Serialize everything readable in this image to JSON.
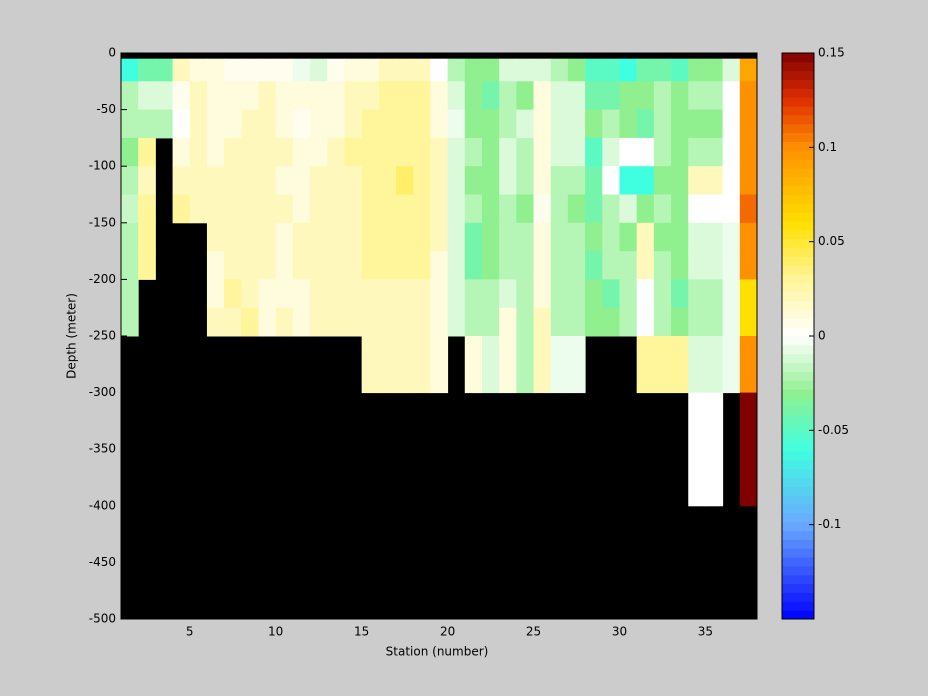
{
  "chart_data": {
    "type": "heatmap",
    "xlabel": "Station (number)",
    "ylabel": "Depth (meter)",
    "xlim": [
      1,
      38
    ],
    "ylim": [
      -500,
      0
    ],
    "xticks": [
      5,
      10,
      15,
      20,
      25,
      30,
      35
    ],
    "yticks": [
      0,
      -50,
      -100,
      -150,
      -200,
      -250,
      -300,
      -350,
      -400,
      -450,
      -500
    ],
    "background": "#000000",
    "station_edges": [
      1,
      2,
      3,
      4,
      5,
      6,
      7,
      8,
      9,
      10,
      11,
      12,
      13,
      14,
      15,
      16,
      17,
      18,
      19,
      20,
      21,
      22,
      23,
      24,
      25,
      26,
      27,
      28,
      29,
      30,
      31,
      32,
      33,
      34,
      35,
      36,
      37,
      38
    ],
    "depth_edges": [
      -5,
      -25,
      -50,
      -75,
      -100,
      -125,
      -150,
      -175,
      -200,
      -225,
      -250,
      -300,
      -400
    ],
    "clim": [
      -0.15,
      0.15
    ],
    "cticks": [
      -0.1,
      -0.05,
      0,
      0.05,
      0.1,
      0.15
    ],
    "cmap_stops": [
      [
        -0.15,
        "#0000ff"
      ],
      [
        -0.1,
        "#6aa8ff"
      ],
      [
        -0.06,
        "#40ffe0"
      ],
      [
        -0.03,
        "#90f090"
      ],
      [
        0,
        "#ffffff"
      ],
      [
        0.03,
        "#fff59a"
      ],
      [
        0.06,
        "#ffe000"
      ],
      [
        0.1,
        "#ff9000"
      ],
      [
        0.125,
        "#e03000"
      ],
      [
        0.15,
        "#800000"
      ]
    ],
    "z": [
      [
        -0.06,
        -0.02,
        -0.02,
        -0.03,
        -0.02,
        -0.015,
        -0.02,
        -0.02,
        -0.02,
        -0.02,
        null,
        null
      ],
      [
        -0.04,
        -0.01,
        -0.02,
        0.03,
        0.02,
        0.03,
        0.03,
        0.03,
        null,
        null,
        null,
        null
      ],
      [
        -0.04,
        -0.01,
        -0.02,
        null,
        null,
        null,
        null,
        null,
        null,
        null,
        null,
        null
      ],
      [
        0.02,
        0.005,
        0.0,
        0.01,
        0.02,
        0.03,
        null,
        null,
        null,
        null,
        null,
        null
      ],
      [
        0.01,
        0.02,
        0.02,
        0.02,
        0.02,
        0.02,
        null,
        null,
        null,
        null,
        null,
        null
      ],
      [
        0.01,
        0.01,
        0.01,
        0.01,
        0.02,
        0.02,
        0.02,
        0.01,
        0.01,
        0.02,
        null,
        null
      ],
      [
        0.005,
        0.01,
        0.01,
        0.02,
        0.02,
        0.02,
        0.02,
        0.02,
        0.03,
        0.02,
        null,
        null
      ],
      [
        0.005,
        0.01,
        0.02,
        0.02,
        0.02,
        0.02,
        0.02,
        0.02,
        0.02,
        0.03,
        null,
        null
      ],
      [
        0.005,
        0.02,
        0.02,
        0.02,
        0.02,
        0.02,
        0.02,
        0.02,
        0.01,
        0.01,
        null,
        null
      ],
      [
        0.005,
        0.01,
        0.01,
        0.02,
        0.01,
        0.02,
        0.01,
        0.01,
        0.01,
        0.02,
        null,
        null
      ],
      [
        -0.005,
        0.01,
        0.005,
        0.01,
        0.01,
        0.01,
        0.02,
        0.02,
        0.01,
        0.01,
        null,
        null
      ],
      [
        -0.01,
        0.01,
        0.01,
        0.01,
        0.02,
        0.02,
        0.02,
        0.02,
        0.02,
        0.02,
        null,
        null
      ],
      [
        0.005,
        0.01,
        0.01,
        0.02,
        0.02,
        0.02,
        0.02,
        0.02,
        0.02,
        0.02,
        null,
        null
      ],
      [
        0.01,
        0.02,
        0.02,
        0.03,
        0.02,
        0.02,
        0.02,
        0.02,
        0.02,
        0.02,
        null,
        null
      ],
      [
        0.01,
        0.02,
        0.03,
        0.03,
        0.03,
        0.03,
        0.03,
        0.03,
        0.02,
        0.02,
        0.02,
        null
      ],
      [
        0.02,
        0.03,
        0.03,
        0.03,
        0.03,
        0.03,
        0.03,
        0.03,
        0.02,
        0.02,
        0.02,
        null
      ],
      [
        0.02,
        0.03,
        0.03,
        0.03,
        0.04,
        0.03,
        0.03,
        0.03,
        0.02,
        0.02,
        0.02,
        null
      ],
      [
        0.02,
        0.03,
        0.03,
        0.03,
        0.03,
        0.03,
        0.03,
        0.03,
        0.02,
        0.02,
        0.02,
        null
      ],
      [
        0.0,
        0.01,
        0.01,
        0.02,
        0.02,
        0.02,
        0.02,
        0.01,
        0.01,
        0.01,
        0.01,
        null
      ],
      [
        -0.02,
        -0.01,
        -0.005,
        -0.01,
        -0.01,
        -0.01,
        -0.01,
        -0.01,
        -0.01,
        -0.01,
        null,
        null
      ],
      [
        -0.03,
        -0.03,
        -0.03,
        -0.02,
        -0.03,
        -0.02,
        -0.04,
        -0.04,
        -0.02,
        -0.02,
        0.01,
        null
      ],
      [
        -0.03,
        -0.04,
        -0.03,
        -0.03,
        -0.03,
        -0.03,
        -0.03,
        -0.03,
        -0.02,
        -0.02,
        -0.01,
        null
      ],
      [
        -0.01,
        -0.02,
        -0.02,
        -0.01,
        -0.01,
        -0.02,
        -0.02,
        -0.02,
        -0.01,
        0.01,
        0.01,
        null
      ],
      [
        -0.01,
        -0.03,
        -0.01,
        -0.02,
        -0.02,
        -0.03,
        -0.02,
        -0.02,
        -0.02,
        -0.02,
        -0.02,
        null
      ],
      [
        -0.01,
        0.01,
        0.01,
        0.01,
        0.01,
        0.005,
        0.01,
        0.01,
        0.01,
        0.02,
        0.02,
        null
      ],
      [
        -0.02,
        -0.01,
        -0.01,
        -0.01,
        -0.02,
        -0.02,
        -0.02,
        -0.02,
        -0.02,
        -0.02,
        -0.005,
        null
      ],
      [
        -0.03,
        -0.01,
        -0.01,
        -0.01,
        -0.02,
        -0.03,
        -0.02,
        -0.02,
        -0.02,
        -0.02,
        -0.005,
        null
      ],
      [
        -0.05,
        -0.04,
        -0.03,
        -0.05,
        -0.04,
        -0.04,
        -0.03,
        -0.04,
        -0.03,
        -0.03,
        null,
        null
      ],
      [
        -0.05,
        -0.04,
        -0.02,
        -0.01,
        0.0,
        -0.02,
        -0.02,
        -0.02,
        -0.04,
        -0.03,
        null,
        null
      ],
      [
        -0.06,
        -0.03,
        -0.03,
        0.0,
        -0.06,
        -0.01,
        -0.03,
        -0.02,
        -0.02,
        -0.02,
        null,
        null
      ],
      [
        -0.04,
        -0.03,
        -0.04,
        0.0,
        -0.06,
        -0.03,
        0.02,
        0.02,
        0.0,
        0.0,
        0.03,
        null
      ],
      [
        -0.04,
        -0.02,
        -0.02,
        -0.02,
        -0.03,
        -0.02,
        -0.03,
        -0.02,
        -0.02,
        -0.02,
        0.03,
        null
      ],
      [
        -0.05,
        -0.03,
        -0.03,
        -0.03,
        -0.03,
        -0.03,
        -0.03,
        -0.03,
        -0.04,
        -0.03,
        0.03,
        null
      ],
      [
        -0.03,
        -0.02,
        -0.03,
        -0.02,
        0.02,
        0.0,
        -0.01,
        -0.01,
        -0.02,
        -0.02,
        -0.01,
        0.0
      ],
      [
        -0.03,
        -0.02,
        -0.03,
        -0.02,
        0.02,
        0.0,
        -0.01,
        -0.01,
        -0.02,
        -0.02,
        -0.01,
        0.0
      ],
      [
        -0.01,
        0.0,
        0.0,
        0.0,
        0.0,
        0.0,
        -0.005,
        -0.005,
        -0.005,
        -0.005,
        -0.005,
        null
      ],
      [
        0.09,
        0.1,
        0.1,
        0.1,
        0.1,
        0.11,
        0.1,
        0.1,
        0.06,
        0.06,
        0.1,
        0.15
      ]
    ]
  }
}
